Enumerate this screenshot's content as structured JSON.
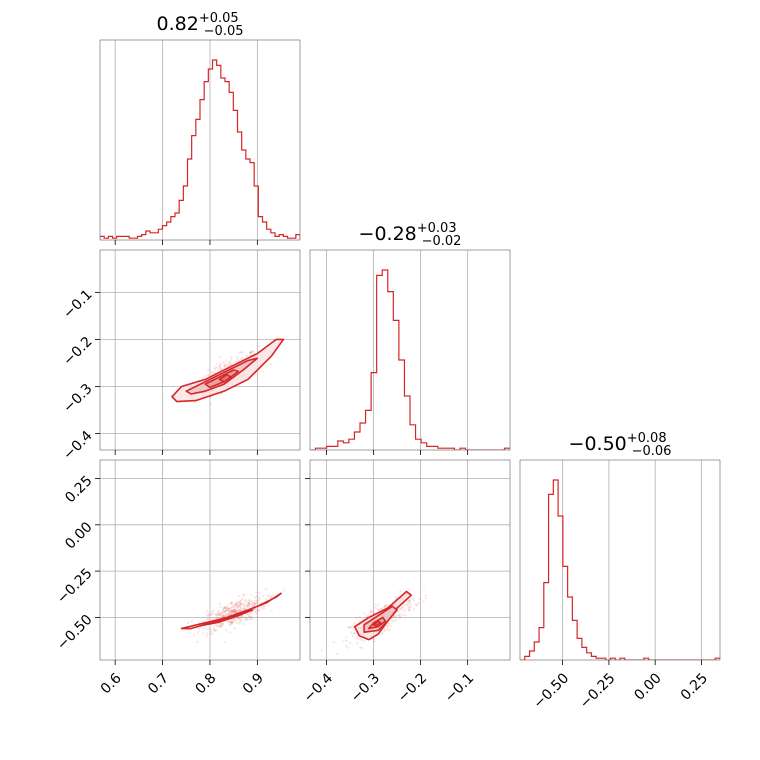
{
  "chart_data": {
    "type": "corner",
    "color": "#d62728",
    "grid": true,
    "parameters": [
      {
        "median": "0.82",
        "plus": "+0.05",
        "minus": "−0.05",
        "range": [
          0.568,
          0.99
        ]
      },
      {
        "median": "−0.28",
        "plus": "+0.03",
        "minus": "−0.02",
        "range": [
          -0.435,
          -0.01
        ]
      },
      {
        "median": "−0.50",
        "plus": "+0.08",
        "minus": "−0.06",
        "range": [
          -0.73,
          0.35
        ]
      }
    ],
    "ticks": {
      "p0": [
        {
          "v": 0.6,
          "label": "0.6"
        },
        {
          "v": 0.7,
          "label": "0.7"
        },
        {
          "v": 0.8,
          "label": "0.8"
        },
        {
          "v": 0.9,
          "label": "0.9"
        }
      ],
      "p1": [
        {
          "v": -0.4,
          "label": "−0.4"
        },
        {
          "v": -0.3,
          "label": "−0.3"
        },
        {
          "v": -0.2,
          "label": "−0.2"
        },
        {
          "v": -0.1,
          "label": "−0.1"
        }
      ],
      "p2": [
        {
          "v": -0.5,
          "label": "−0.50"
        },
        {
          "v": -0.25,
          "label": "−0.25"
        },
        {
          "v": 0.0,
          "label": "0.00"
        },
        {
          "v": 0.25,
          "label": "0.25"
        }
      ]
    },
    "histograms": [
      {
        "param": 0,
        "bins": [
          0.568,
          0.99
        ],
        "counts": [
          0.02,
          0.01,
          0.02,
          0.01,
          0.02,
          0.02,
          0.02,
          0.01,
          0.01,
          0.02,
          0.03,
          0.05,
          0.04,
          0.04,
          0.06,
          0.08,
          0.1,
          0.13,
          0.15,
          0.22,
          0.3,
          0.45,
          0.58,
          0.67,
          0.78,
          0.88,
          0.95,
          1.0,
          0.97,
          0.9,
          0.88,
          0.82,
          0.72,
          0.6,
          0.5,
          0.45,
          0.43,
          0.3,
          0.13,
          0.1,
          0.06,
          0.04,
          0.02,
          0.03,
          0.02,
          0.01,
          0.01,
          0.03
        ]
      },
      {
        "param": 1,
        "bins": [
          -0.435,
          -0.01
        ],
        "counts": [
          0.0,
          0.01,
          0.01,
          0.02,
          0.02,
          0.05,
          0.04,
          0.06,
          0.1,
          0.15,
          0.22,
          0.43,
          0.97,
          1.0,
          0.88,
          0.72,
          0.5,
          0.3,
          0.14,
          0.06,
          0.04,
          0.02,
          0.02,
          0.01,
          0.01,
          0.01,
          0.0,
          0.01,
          0.0,
          0.0,
          0.0,
          0.0,
          0.0,
          0.0,
          0.0,
          0.01
        ]
      },
      {
        "param": 2,
        "bins": [
          -0.73,
          0.35
        ],
        "counts": [
          0.0,
          0.02,
          0.05,
          0.1,
          0.18,
          0.43,
          0.92,
          1.0,
          0.8,
          0.52,
          0.35,
          0.22,
          0.12,
          0.07,
          0.04,
          0.02,
          0.01,
          0.01,
          0.0,
          0.01,
          0.0,
          0.01,
          0.0,
          0.0,
          0.0,
          0.0,
          0.01,
          0.0,
          0.0,
          0.0,
          0.0,
          0.0,
          0.0,
          0.0,
          0.0,
          0.0,
          0.0,
          0.0,
          0.0,
          0.0,
          0.0,
          0.01
        ]
      }
    ],
    "pairs": [
      {
        "x": 0,
        "y": 1,
        "contours": [
          [
            [
              0.72,
              -0.322
            ],
            [
              0.74,
              -0.3
            ],
            [
              0.79,
              -0.285
            ],
            [
              0.85,
              -0.255
            ],
            [
              0.9,
              -0.23
            ],
            [
              0.94,
              -0.2
            ],
            [
              0.955,
              -0.2
            ],
            [
              0.93,
              -0.235
            ],
            [
              0.88,
              -0.285
            ],
            [
              0.83,
              -0.31
            ],
            [
              0.77,
              -0.33
            ],
            [
              0.73,
              -0.332
            ]
          ],
          [
            [
              0.75,
              -0.31
            ],
            [
              0.79,
              -0.29
            ],
            [
              0.84,
              -0.265
            ],
            [
              0.88,
              -0.245
            ],
            [
              0.9,
              -0.24
            ],
            [
              0.87,
              -0.265
            ],
            [
              0.83,
              -0.295
            ],
            [
              0.79,
              -0.31
            ],
            [
              0.76,
              -0.316
            ]
          ],
          [
            [
              0.79,
              -0.295
            ],
            [
              0.82,
              -0.28
            ],
            [
              0.85,
              -0.265
            ],
            [
              0.86,
              -0.268
            ],
            [
              0.83,
              -0.29
            ],
            [
              0.8,
              -0.302
            ]
          ],
          [
            [
              0.82,
              -0.285
            ],
            [
              0.835,
              -0.275
            ],
            [
              0.845,
              -0.28
            ],
            [
              0.83,
              -0.29
            ]
          ]
        ]
      },
      {
        "x": 0,
        "y": 2,
        "contours": [
          [
            [
              0.74,
              -0.56
            ],
            [
              0.78,
              -0.535
            ],
            [
              0.83,
              -0.505
            ],
            [
              0.88,
              -0.46
            ],
            [
              0.92,
              -0.42
            ],
            [
              0.95,
              -0.37
            ],
            [
              0.94,
              -0.39
            ],
            [
              0.9,
              -0.44
            ],
            [
              0.85,
              -0.49
            ],
            [
              0.8,
              -0.53
            ],
            [
              0.76,
              -0.56
            ]
          ],
          [
            [
              0.78,
              -0.545
            ],
            [
              0.83,
              -0.515
            ],
            [
              0.87,
              -0.475
            ],
            [
              0.89,
              -0.46
            ],
            [
              0.86,
              -0.49
            ],
            [
              0.82,
              -0.525
            ]
          ],
          [
            [
              0.8,
              -0.535
            ],
            [
              0.84,
              -0.505
            ],
            [
              0.855,
              -0.495
            ],
            [
              0.83,
              -0.515
            ]
          ]
        ]
      },
      {
        "x": 1,
        "y": 2,
        "contours": [
          [
            [
              -0.33,
              -0.6
            ],
            [
              -0.34,
              -0.55
            ],
            [
              -0.31,
              -0.5
            ],
            [
              -0.27,
              -0.45
            ],
            [
              -0.23,
              -0.36
            ],
            [
              -0.22,
              -0.38
            ],
            [
              -0.25,
              -0.45
            ],
            [
              -0.27,
              -0.52
            ],
            [
              -0.29,
              -0.59
            ],
            [
              -0.31,
              -0.62
            ]
          ],
          [
            [
              -0.32,
              -0.58
            ],
            [
              -0.32,
              -0.54
            ],
            [
              -0.29,
              -0.49
            ],
            [
              -0.26,
              -0.44
            ],
            [
              -0.25,
              -0.46
            ],
            [
              -0.27,
              -0.52
            ],
            [
              -0.29,
              -0.57
            ]
          ],
          [
            [
              -0.31,
              -0.56
            ],
            [
              -0.3,
              -0.53
            ],
            [
              -0.28,
              -0.5
            ],
            [
              -0.275,
              -0.52
            ],
            [
              -0.29,
              -0.55
            ]
          ],
          [
            [
              -0.3,
              -0.54
            ],
            [
              -0.29,
              -0.52
            ],
            [
              -0.285,
              -0.53
            ],
            [
              -0.295,
              -0.545
            ]
          ]
        ]
      }
    ]
  }
}
